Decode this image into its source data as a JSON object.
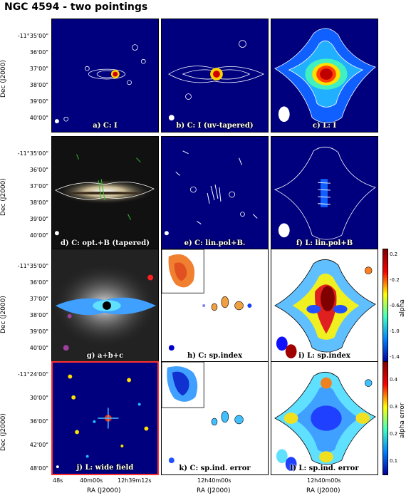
{
  "title": "NGC 4594 - two pointings",
  "panels": [
    {
      "label": "a) C: I"
    },
    {
      "label": "b) C: I (uv-tapered)"
    },
    {
      "label": "c) L: I"
    },
    {
      "label": "d) C: opt.+B (tapered)"
    },
    {
      "label": "e) C: lin.pol+B."
    },
    {
      "label": "f) L: lin.pol+B"
    },
    {
      "label": "g) a+b+c"
    },
    {
      "label": "h) C: sp.index"
    },
    {
      "label": "i) L: sp.index"
    },
    {
      "label": "j) L: wide field"
    },
    {
      "label": "k) C: sp.ind. error"
    },
    {
      "label": "l) L: sp.ind. error"
    }
  ],
  "axes": {
    "dec_label": "Dec (J2000)",
    "ra_label": "RA (J2000)",
    "dec_ticks": [
      "-11°35'00\"",
      "36'00\"",
      "37'00\"",
      "38'00\"",
      "39'00\"",
      "40'00\""
    ],
    "dec_ticks_wide": [
      "-11°24'00\"",
      "30'00\"",
      "36'00\"",
      "42'00\"",
      "48'00\""
    ],
    "ra_ticks_wide": [
      "48s",
      "40m00s",
      "12h39m12s"
    ],
    "ra_ticks": [
      "12h40m00s"
    ]
  },
  "colorbars": [
    {
      "label": "alpha",
      "ticks": [
        "0.2",
        "-0.2",
        "-0.6",
        "-1.0",
        "-1.4"
      ]
    },
    {
      "label": "alpha error",
      "ticks": [
        "0.4",
        "0.3",
        "0.2",
        "0.1"
      ]
    }
  ],
  "colors": {
    "jet_bg": "#00007f",
    "wide_border": "#ff3030"
  }
}
